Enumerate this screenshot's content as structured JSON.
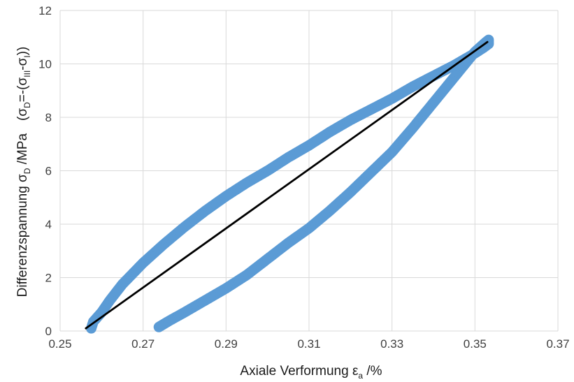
{
  "chart_data": {
    "type": "scatter",
    "xlabel": {
      "main": "Axiale Verformung ε",
      "sub": "a",
      "suffix": " /%"
    },
    "ylabel": {
      "part1": "Differenzspannung σ",
      "part1_sub": "D",
      "part2": " /MPa",
      "part3": "(σ",
      "part3_sub": "D",
      "part4": "=-(σ",
      "part4_sub": "III",
      "part5": "-σ",
      "part5_sub": "I",
      "part6": "))"
    },
    "xlim": [
      0.25,
      0.37
    ],
    "ylim": [
      0,
      12
    ],
    "x_ticks": [
      0.25,
      0.27,
      0.29,
      0.31,
      0.33,
      0.35,
      0.37
    ],
    "x_tick_labels": [
      "0.25",
      "0.27",
      "0.29",
      "0.31",
      "0.33",
      "0.35",
      "0.37"
    ],
    "y_ticks": [
      0,
      2,
      4,
      6,
      8,
      10,
      12
    ],
    "y_tick_labels": [
      "0",
      "2",
      "4",
      "6",
      "8",
      "10",
      "12"
    ],
    "grid": true,
    "legend": "none",
    "series": [
      {
        "color": "#5b9bd5",
        "marker": "circle",
        "x": [
          0.2738,
          0.2765,
          0.28,
          0.285,
          0.29,
          0.295,
          0.3,
          0.305,
          0.31,
          0.315,
          0.32,
          0.325,
          0.33,
          0.335,
          0.34,
          0.345,
          0.35,
          0.3525,
          0.3533,
          0.3533,
          0.352,
          0.35,
          0.345,
          0.34,
          0.335,
          0.33,
          0.325,
          0.32,
          0.315,
          0.31,
          0.305,
          0.3,
          0.295,
          0.29,
          0.285,
          0.28,
          0.275,
          0.27,
          0.265,
          0.262,
          0.26,
          0.258,
          0.2575
        ],
        "y": [
          0.15,
          0.4,
          0.7,
          1.15,
          1.6,
          2.1,
          2.7,
          3.3,
          3.85,
          4.5,
          5.2,
          5.95,
          6.7,
          7.6,
          8.55,
          9.5,
          10.45,
          10.8,
          10.9,
          10.75,
          10.6,
          10.4,
          9.95,
          9.55,
          9.15,
          8.7,
          8.3,
          7.9,
          7.45,
          6.95,
          6.5,
          6.0,
          5.55,
          5.05,
          4.5,
          3.9,
          3.25,
          2.55,
          1.75,
          1.15,
          0.7,
          0.35,
          0.1
        ]
      },
      {
        "color": "#000000",
        "marker": "line",
        "x": [
          0.2562,
          0.353
        ],
        "y": [
          0.1,
          10.82
        ]
      }
    ]
  }
}
